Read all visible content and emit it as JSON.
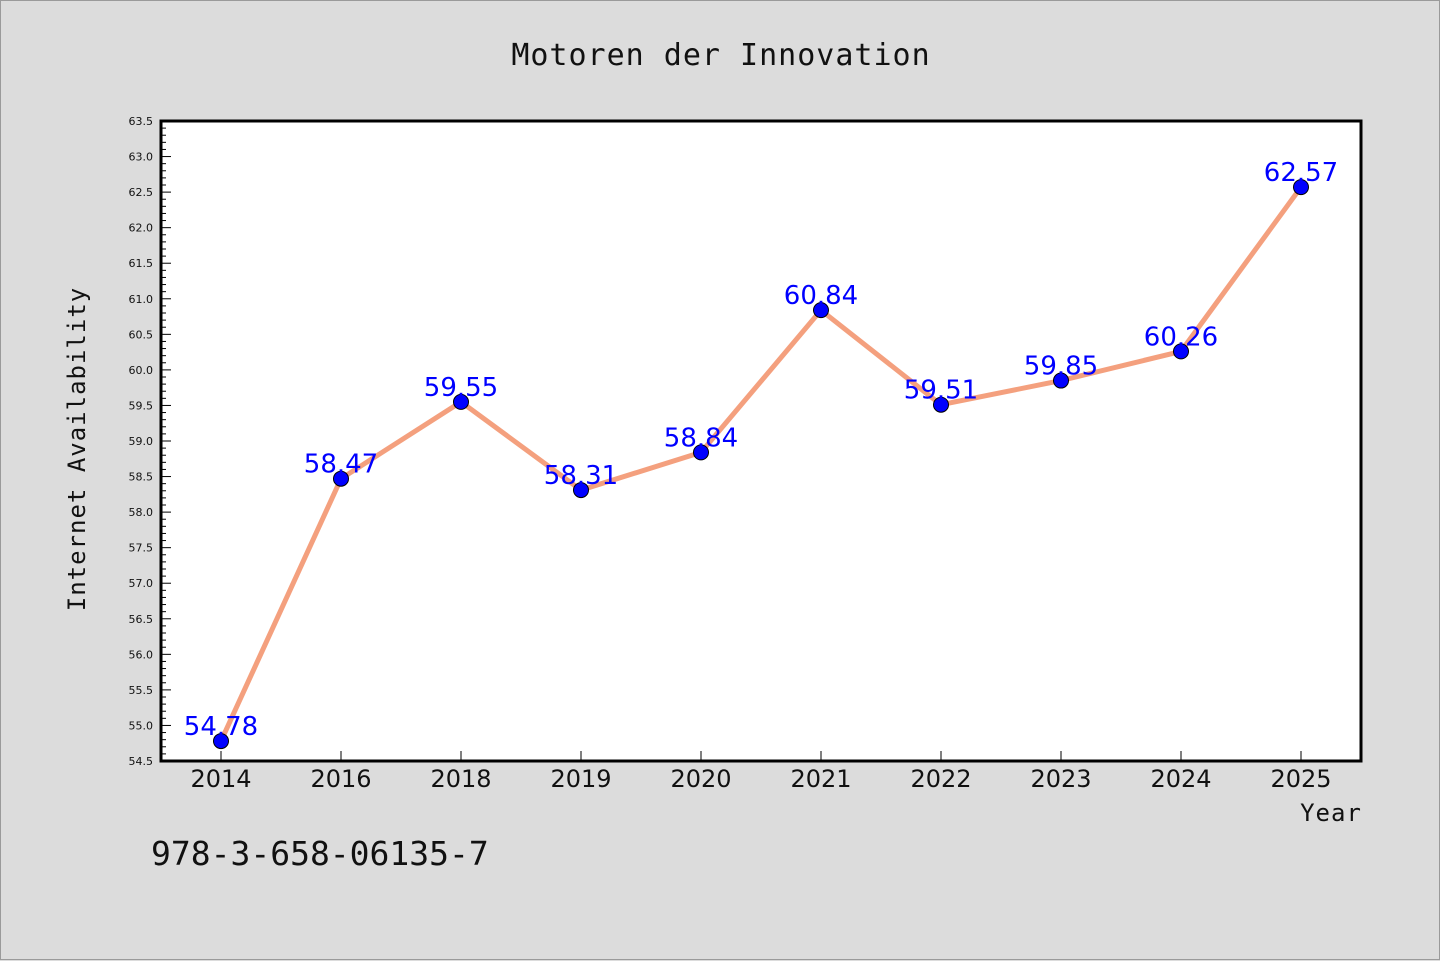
{
  "chart_data": {
    "type": "line",
    "title": "Motoren der Innovation",
    "xlabel": "Year",
    "ylabel": "Internet Availability",
    "categories": [
      "2014",
      "2016",
      "2018",
      "2019",
      "2020",
      "2021",
      "2022",
      "2023",
      "2024",
      "2025"
    ],
    "series": [
      {
        "values": [
          54.78,
          58.47,
          59.55,
          58.31,
          58.84,
          60.84,
          59.51,
          59.85,
          60.26,
          62.57
        ],
        "line_color": "#f4a07e",
        "marker_color": "#0000ff"
      }
    ],
    "data_labels": [
      "54.78",
      "58.47",
      "59.55",
      "58.31",
      "58.84",
      "60.84",
      "59.51",
      "59.85",
      "60.26",
      "62.57"
    ],
    "ylim": [
      54.5,
      63.5
    ],
    "yticks": [
      "54.5",
      "55.0",
      "55.5",
      "56.0",
      "56.5",
      "57.0",
      "57.5",
      "58.0",
      "58.5",
      "59.0",
      "59.5",
      "60.0",
      "60.5",
      "61.0",
      "61.5",
      "62.0",
      "62.5",
      "63.0",
      "63.5"
    ],
    "grid": false,
    "legend": "none",
    "background_color": "#dcdcdc",
    "plot_background": "#ffffff"
  },
  "footer": {
    "code": "978-3-658-06135-7"
  }
}
